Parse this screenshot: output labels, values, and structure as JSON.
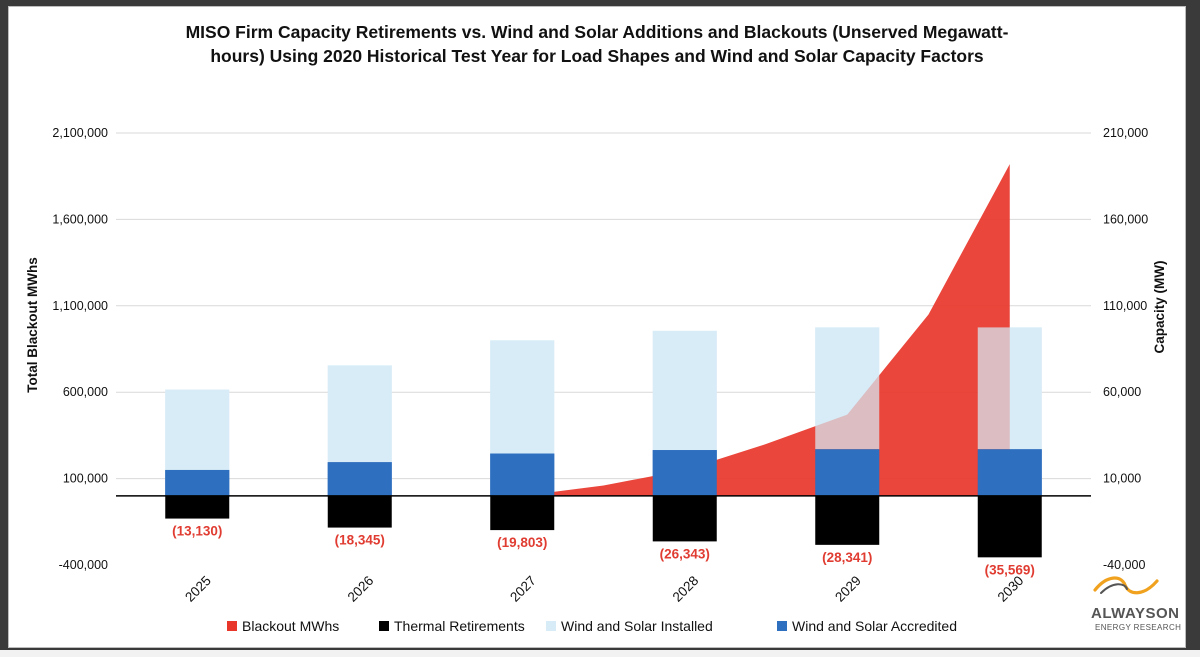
{
  "chart_data": {
    "type": "bar",
    "title_lines": [
      "MISO Firm Capacity Retirements vs. Wind and Solar Additions and Blackouts (Unserved Megawatt-",
      "hours) Using 2020 Historical Test Year for Load Shapes and Wind and Solar Capacity Factors"
    ],
    "categories": [
      "2025",
      "2026",
      "2027",
      "2028",
      "2029",
      "2030"
    ],
    "y_left": {
      "label": "Total Blackout MWhs",
      "ticks": [
        "2,100,000",
        "1,600,000",
        "1,100,000",
        "600,000",
        "100,000",
        "-400,000"
      ],
      "ylim": [
        -400000,
        2100000
      ]
    },
    "y_right": {
      "label": "Capacity (MW)",
      "ticks": [
        "210,000",
        "160,000",
        "110,000",
        "60,000",
        "10,000",
        "-40,000"
      ],
      "ylim": [
        -40000,
        210000
      ]
    },
    "series": [
      {
        "name": "Blackout MWhs",
        "axis": "left",
        "kind": "area",
        "color": "#e8362a",
        "x": [
          2027,
          2027.5,
          2028,
          2028.5,
          2029,
          2029.5,
          2030
        ],
        "values": [
          0,
          60000,
          150000,
          300000,
          470000,
          1050000,
          1920000
        ]
      },
      {
        "name": "Thermal Retirements",
        "axis": "right",
        "kind": "bar",
        "color": "#000000",
        "values": [
          -13130,
          -18345,
          -19803,
          -26343,
          -28341,
          -35569
        ],
        "labels": [
          "(13,130)",
          "(18,345)",
          "(19,803)",
          "(26,343)",
          "(28,341)",
          "(35,569)"
        ]
      },
      {
        "name": "Wind and Solar Installed",
        "axis": "right",
        "kind": "bar",
        "color": "#d7ecf7",
        "values": [
          61500,
          75500,
          90000,
          95500,
          97500,
          97500
        ]
      },
      {
        "name": "Wind and Solar Accredited",
        "axis": "right",
        "kind": "bar",
        "color": "#2e6fbf",
        "values": [
          15000,
          19500,
          24500,
          26500,
          27000,
          27000
        ]
      }
    ],
    "legend_position": "bottom"
  },
  "logo": {
    "name": "ALWAYSON",
    "sub": "ENERGY RESEARCH"
  },
  "colors": {
    "frame_bg": "#ffffff",
    "outer_bg": "#3a3a3a",
    "grid": "#d9d9d9"
  }
}
